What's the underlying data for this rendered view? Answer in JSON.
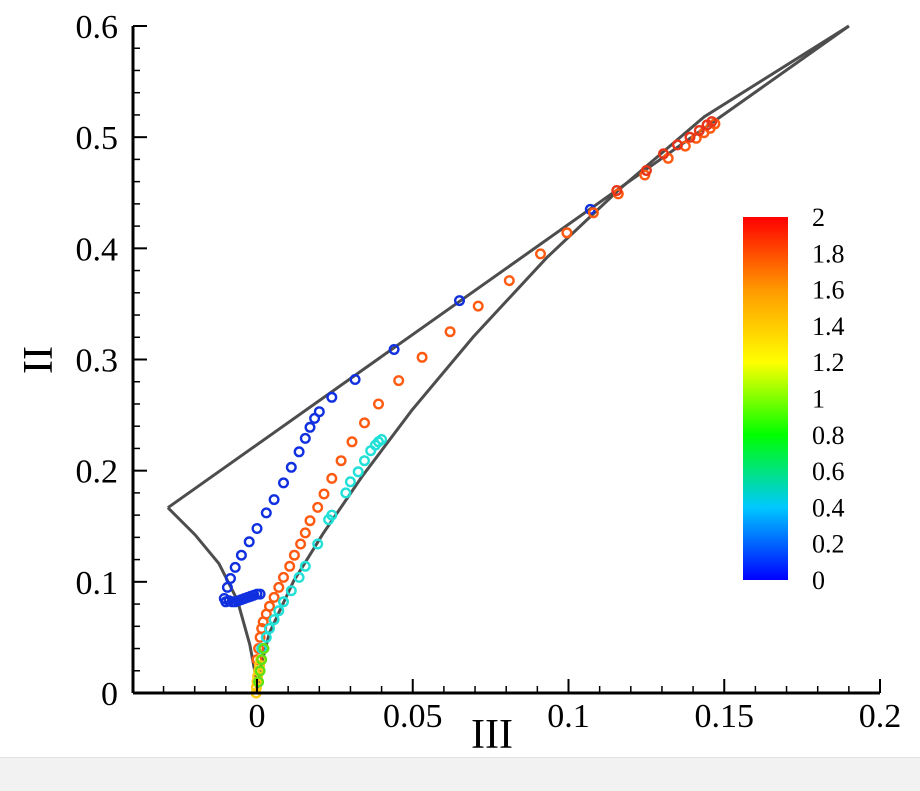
{
  "chart_data": {
    "type": "scatter",
    "title": "",
    "xlabel": "III",
    "ylabel": "II",
    "xlim": [
      -0.04,
      0.2
    ],
    "ylim": [
      0,
      0.6
    ],
    "xticks": [
      0,
      0.05,
      0.1,
      0.15,
      0.2
    ],
    "xtick_labels": [
      "0",
      "0.05",
      "0.1",
      "0.15",
      "0.2"
    ],
    "yticks": [
      0,
      0.1,
      0.2,
      0.3,
      0.4,
      0.5,
      0.6
    ],
    "ytick_labels": [
      "0",
      "0.1",
      "0.2",
      "0.3",
      "0.4",
      "0.5",
      "0.6"
    ],
    "grid": false,
    "marker": "open-circle",
    "line_color": "#4d4d4d",
    "boundary": {
      "upper_line": [
        [
          -0.0286,
          0.1667
        ],
        [
          0.19,
          0.6
        ]
      ],
      "left_curve": [
        [
          0,
          0
        ],
        [
          -0.0005,
          0.0165
        ],
        [
          -0.0023,
          0.0435
        ],
        [
          -0.0063,
          0.0834
        ],
        [
          -0.0122,
          0.1163
        ],
        [
          -0.0199,
          0.1424
        ],
        [
          -0.0286,
          0.1667
        ]
      ],
      "right_curve": [
        [
          0,
          0
        ],
        [
          0.001,
          0.0213
        ],
        [
          0.004,
          0.0542
        ],
        [
          0.0117,
          0.1003
        ],
        [
          0.0212,
          0.1433
        ],
        [
          0.0336,
          0.1943
        ],
        [
          0.0497,
          0.2543
        ],
        [
          0.0695,
          0.3206
        ],
        [
          0.093,
          0.3916
        ],
        [
          0.1164,
          0.4533
        ],
        [
          0.1436,
          0.5184
        ],
        [
          0.19,
          0.6
        ]
      ]
    },
    "colorbar": {
      "min": 0,
      "max": 2,
      "tick_labels": [
        "0",
        "0.2",
        "0.4",
        "0.6",
        "0.8",
        "1",
        "1.2",
        "1.4",
        "1.6",
        "1.8",
        "2"
      ],
      "colors": [
        "#0000ff",
        "#00c8ff",
        "#00ff00",
        "#ffff00",
        "#ff9900",
        "#ff0000"
      ]
    },
    "series": [
      {
        "color": "#1030e0",
        "points": [
          [
            -0.0105,
            0.085
          ],
          [
            -0.01,
            0.082
          ],
          [
            -0.009,
            0.083
          ],
          [
            -0.008,
            0.082
          ],
          [
            -0.007,
            0.082
          ],
          [
            -0.006,
            0.083
          ],
          [
            -0.005,
            0.084
          ],
          [
            -0.004,
            0.085
          ],
          [
            -0.003,
            0.086
          ],
          [
            -0.002,
            0.087
          ],
          [
            -0.001,
            0.088
          ],
          [
            0.0,
            0.089
          ],
          [
            0.001,
            0.089
          ],
          [
            -0.0095,
            0.095
          ],
          [
            -0.0085,
            0.103
          ],
          [
            -0.007,
            0.113
          ],
          [
            -0.005,
            0.124
          ],
          [
            -0.0025,
            0.136
          ],
          [
            0.0,
            0.148
          ],
          [
            0.003,
            0.162
          ],
          [
            0.0055,
            0.174
          ],
          [
            0.0085,
            0.189
          ],
          [
            0.011,
            0.203
          ],
          [
            0.0135,
            0.217
          ],
          [
            0.0155,
            0.229
          ],
          [
            0.017,
            0.239
          ],
          [
            0.0185,
            0.247
          ],
          [
            0.02,
            0.253
          ],
          [
            0.024,
            0.266
          ],
          [
            0.0315,
            0.282
          ],
          [
            0.044,
            0.309
          ],
          [
            0.065,
            0.353
          ],
          [
            0.107,
            0.435
          ]
        ]
      },
      {
        "color": "#ff5a10",
        "points": [
          [
            0.0,
            0.03
          ],
          [
            0.0005,
            0.04
          ],
          [
            0.001,
            0.05
          ],
          [
            0.0015,
            0.058
          ],
          [
            0.002,
            0.064
          ],
          [
            0.003,
            0.071
          ],
          [
            0.004,
            0.078
          ],
          [
            0.0055,
            0.086
          ],
          [
            0.007,
            0.095
          ],
          [
            0.0085,
            0.104
          ],
          [
            0.0105,
            0.114
          ],
          [
            0.012,
            0.124
          ],
          [
            0.014,
            0.134
          ],
          [
            0.0155,
            0.144
          ],
          [
            0.017,
            0.155
          ],
          [
            0.0195,
            0.167
          ],
          [
            0.0215,
            0.179
          ],
          [
            0.024,
            0.193
          ],
          [
            0.027,
            0.209
          ],
          [
            0.0305,
            0.226
          ],
          [
            0.0345,
            0.243
          ],
          [
            0.039,
            0.26
          ],
          [
            0.0455,
            0.281
          ],
          [
            0.053,
            0.302
          ],
          [
            0.062,
            0.325
          ],
          [
            0.071,
            0.348
          ],
          [
            0.081,
            0.371
          ],
          [
            0.091,
            0.395
          ],
          [
            0.0995,
            0.414
          ],
          [
            0.108,
            0.432
          ],
          [
            0.116,
            0.449
          ],
          [
            0.1245,
            0.466
          ],
          [
            0.132,
            0.481
          ],
          [
            0.1375,
            0.492
          ],
          [
            0.141,
            0.499
          ],
          [
            0.1435,
            0.504
          ],
          [
            0.1455,
            0.508
          ],
          [
            0.147,
            0.512
          ]
        ]
      },
      {
        "color": "#e83418",
        "points": [
          [
            0.1155,
            0.452
          ],
          [
            0.125,
            0.47
          ],
          [
            0.1305,
            0.485
          ],
          [
            0.135,
            0.493
          ],
          [
            0.139,
            0.5
          ],
          [
            0.142,
            0.506
          ],
          [
            0.1445,
            0.511
          ],
          [
            0.146,
            0.514
          ]
        ]
      },
      {
        "color": "#20e0d8",
        "points": [
          [
            0.0015,
            0.04
          ],
          [
            0.003,
            0.05
          ],
          [
            0.004,
            0.058
          ],
          [
            0.0055,
            0.066
          ],
          [
            0.007,
            0.074
          ],
          [
            0.0085,
            0.082
          ],
          [
            0.011,
            0.092
          ],
          [
            0.0135,
            0.104
          ],
          [
            0.0155,
            0.114
          ],
          [
            0.0195,
            0.134
          ],
          [
            0.023,
            0.156
          ],
          [
            0.024,
            0.16
          ],
          [
            0.0285,
            0.18
          ],
          [
            0.03,
            0.19
          ],
          [
            0.0325,
            0.199
          ],
          [
            0.0345,
            0.209
          ],
          [
            0.0365,
            0.218
          ],
          [
            0.038,
            0.223
          ],
          [
            0.039,
            0.226
          ],
          [
            0.04,
            0.228
          ]
        ]
      },
      {
        "color": "#ffcc10",
        "points": [
          [
            -0.0003,
            0.0
          ],
          [
            -0.0002,
            0.005
          ],
          [
            0.0,
            0.01
          ],
          [
            0.0002,
            0.015
          ],
          [
            0.0005,
            0.02
          ],
          [
            0.0008,
            0.025
          ],
          [
            0.0012,
            0.03
          ]
        ]
      },
      {
        "color": "#60e010",
        "points": [
          [
            0.0005,
            0.01
          ],
          [
            0.001,
            0.02
          ],
          [
            0.0015,
            0.03
          ],
          [
            0.0022,
            0.04
          ]
        ]
      }
    ]
  }
}
